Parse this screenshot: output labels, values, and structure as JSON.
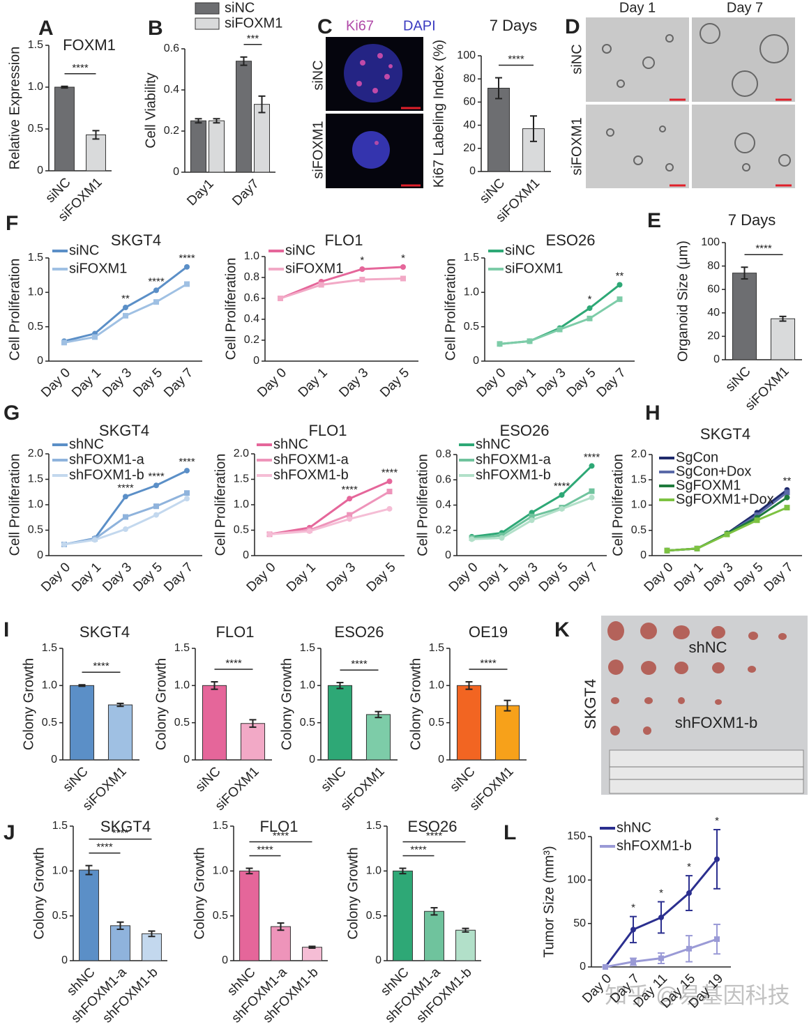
{
  "chart_data": [
    {
      "type": "bar",
      "panel": "A",
      "title": "FOXM1",
      "ylabel": "Relative Expression",
      "categories": [
        "siNC",
        "siFOXM1"
      ],
      "values": [
        1.0,
        0.43
      ],
      "errors": [
        0.01,
        0.05
      ],
      "colors": [
        "#6d6e71",
        "#d9dadb"
      ],
      "ylim": [
        0,
        1.5
      ],
      "yticks": [
        0,
        0.5,
        {
          "value": 1,
          "label": "1.0"
        },
        1.5
      ],
      "annotations": [
        "****"
      ]
    },
    {
      "type": "bar",
      "panel": "B",
      "ylabel": "Cell Viability",
      "categories": [
        "Day1",
        "Day7"
      ],
      "series": [
        {
          "name": "siNC",
          "color": "#6d6e71",
          "values": [
            0.25,
            0.54
          ],
          "errors": [
            0.01,
            0.02
          ]
        },
        {
          "name": "siFOXM1",
          "color": "#d9dadb",
          "values": [
            0.25,
            0.33
          ],
          "errors": [
            0.01,
            0.04
          ]
        }
      ],
      "ylim": [
        0,
        0.6
      ],
      "yticks": [
        0,
        0.2,
        0.4,
        0.6
      ],
      "annotations": [
        "***"
      ]
    },
    {
      "type": "bar",
      "title": "7 Days",
      "ylabel": "Ki67 Labeling Index (%)",
      "categories": [
        "siNC",
        "siFOXM1"
      ],
      "values": [
        72,
        37
      ],
      "errors": [
        9,
        11
      ],
      "colors": [
        "#6d6e71",
        "#d9dadb"
      ],
      "ylim": [
        0,
        100
      ],
      "yticks": [
        0,
        20,
        40,
        60,
        80,
        100
      ],
      "annotations": [
        "****"
      ]
    },
    {
      "type": "line",
      "panel": "F",
      "title": "SKGT4",
      "ylabel": "Cell Proliferation",
      "categories": [
        "Day 0",
        "Day 1",
        "Day 3",
        "Day 5",
        "Day 7"
      ],
      "series": [
        {
          "name": "siNC",
          "color": "#5b8fc7",
          "values": [
            0.29,
            0.4,
            0.78,
            1.03,
            1.37
          ]
        },
        {
          "name": "siFOXM1",
          "color": "#9fc0e3",
          "values": [
            0.27,
            0.35,
            0.66,
            0.86,
            1.12
          ]
        }
      ],
      "ylim": [
        0,
        1.5
      ],
      "yticks": [
        0,
        0.5,
        {
          "value": 1,
          "label": "1.0"
        },
        1.5
      ],
      "annotations": [
        null,
        null,
        "**",
        "****",
        "****"
      ]
    },
    {
      "type": "line",
      "title": "FLO1",
      "ylabel": "Cell Proliferation",
      "categories": [
        "Day 0",
        "Day 1",
        "Day 3",
        "Day 5"
      ],
      "series": [
        {
          "name": "siNC",
          "color": "#e5669a",
          "values": [
            0.6,
            0.76,
            0.88,
            0.9
          ]
        },
        {
          "name": "siFOXM1",
          "color": "#f2a9c6",
          "values": [
            0.6,
            0.73,
            0.78,
            0.79
          ]
        }
      ],
      "ylim": [
        0,
        1.0
      ],
      "yticks": [
        0,
        0.2,
        0.4,
        0.6,
        0.8,
        {
          "value": 1,
          "label": "1.0"
        }
      ],
      "annotations": [
        null,
        null,
        "*",
        "*"
      ]
    },
    {
      "type": "line",
      "title": "ESO26",
      "ylabel": "Cell Proliferation",
      "categories": [
        "Day 0",
        "Day 1",
        "Day 3",
        "Day 5",
        "Day 7"
      ],
      "series": [
        {
          "name": "siNC",
          "color": "#2ea876",
          "values": [
            0.25,
            0.29,
            0.48,
            0.77,
            1.11
          ]
        },
        {
          "name": "siFOXM1",
          "color": "#7dcca8",
          "values": [
            0.25,
            0.29,
            0.46,
            0.62,
            0.9
          ]
        }
      ],
      "ylim": [
        0,
        1.5
      ],
      "yticks": [
        0,
        0.5,
        {
          "value": 1,
          "label": "1.0"
        },
        1.5
      ],
      "annotations": [
        null,
        null,
        null,
        "*",
        "**"
      ]
    },
    {
      "type": "bar",
      "panel": "E",
      "title": "7 Days",
      "ylabel": "Organoid Size (μm)",
      "categories": [
        "siNC",
        "siFOXM1"
      ],
      "values": [
        74,
        35
      ],
      "errors": [
        5,
        2
      ],
      "colors": [
        "#6d6e71",
        "#d9dadb"
      ],
      "ylim": [
        0,
        100
      ],
      "yticks": [
        0,
        20,
        40,
        60,
        80,
        100
      ],
      "annotations": [
        "****"
      ]
    },
    {
      "type": "line",
      "panel": "G",
      "title": "SKGT4",
      "ylabel": "Cell Proliferation",
      "categories": [
        "Day 0",
        "Day 1",
        "Day 3",
        "Day 5",
        "Day 7"
      ],
      "series": [
        {
          "name": "shNC",
          "color": "#5b8fc7",
          "values": [
            0.22,
            0.34,
            1.16,
            1.38,
            1.67
          ]
        },
        {
          "name": "shFOXM1-a",
          "color": "#8fb3dc",
          "values": [
            0.22,
            0.33,
            0.76,
            0.97,
            1.23
          ]
        },
        {
          "name": "shFOXM1-b",
          "color": "#c3d8ee",
          "values": [
            0.22,
            0.31,
            0.52,
            0.8,
            1.12
          ]
        }
      ],
      "ylim": [
        0,
        2.0
      ],
      "yticks": [
        0,
        0.5,
        {
          "value": 1,
          "label": "1.0"
        },
        1.5,
        {
          "value": 2,
          "label": "2.0"
        }
      ],
      "annotations": [
        null,
        null,
        "****",
        "****",
        "****"
      ]
    },
    {
      "type": "line",
      "title": "FLO1",
      "ylabel": "Cell Proliferation",
      "categories": [
        "Day 0",
        "Day 1",
        "Day 3",
        "Day 5"
      ],
      "series": [
        {
          "name": "shNC",
          "color": "#e5669a",
          "values": [
            0.42,
            0.55,
            1.12,
            1.46
          ]
        },
        {
          "name": "shFOXM1-a",
          "color": "#ee94ba",
          "values": [
            0.42,
            0.5,
            0.8,
            1.26
          ]
        },
        {
          "name": "shFOXM1-b",
          "color": "#f5bdd5",
          "values": [
            0.42,
            0.48,
            0.72,
            0.92
          ]
        }
      ],
      "ylim": [
        0,
        2.0
      ],
      "yticks": [
        0,
        0.5,
        {
          "value": 1,
          "label": "1.0"
        },
        1.5,
        {
          "value": 2,
          "label": "2.0"
        }
      ],
      "annotations": [
        null,
        null,
        "****",
        "****"
      ]
    },
    {
      "type": "line",
      "title": "ESO26",
      "ylabel": "Cell Proliferation",
      "categories": [
        "Day 0",
        "Day 1",
        "Day 3",
        "Day 5",
        "Day 7"
      ],
      "series": [
        {
          "name": "shNC",
          "color": "#2ea876",
          "values": [
            0.15,
            0.18,
            0.34,
            0.48,
            0.71
          ]
        },
        {
          "name": "shFOXM1-a",
          "color": "#6fc39d",
          "values": [
            0.14,
            0.16,
            0.31,
            0.38,
            0.51
          ]
        },
        {
          "name": "shFOXM1-b",
          "color": "#b2e0c9",
          "values": [
            0.13,
            0.14,
            0.28,
            0.37,
            0.46
          ]
        }
      ],
      "ylim": [
        0,
        0.8
      ],
      "yticks": [
        0,
        0.2,
        0.4,
        0.6,
        0.8
      ],
      "annotations": [
        null,
        null,
        null,
        "****",
        "****"
      ]
    },
    {
      "type": "line",
      "panel": "H",
      "title": "SKGT4",
      "ylabel": "Cell Proliferation",
      "categories": [
        "Day 0",
        "Day 1",
        "Day 3",
        "Day 5",
        "Day 7"
      ],
      "series": [
        {
          "name": "SgCon",
          "color": "#1f2a6b",
          "values": [
            0.1,
            0.14,
            0.44,
            0.85,
            1.3
          ]
        },
        {
          "name": "SgCon+Dox",
          "color": "#5a6aa8",
          "values": [
            0.1,
            0.14,
            0.43,
            0.8,
            1.25
          ]
        },
        {
          "name": "SgFOXM1",
          "color": "#1e7a3c",
          "values": [
            0.1,
            0.14,
            0.44,
            0.75,
            1.15
          ]
        },
        {
          "name": "SgFOXM1+Dox",
          "color": "#7dc242",
          "values": [
            0.1,
            0.14,
            0.42,
            0.7,
            0.95
          ]
        }
      ],
      "ylim": [
        0,
        2.0
      ],
      "yticks": [
        0,
        0.5,
        {
          "value": 1,
          "label": "1.0"
        },
        1.5,
        {
          "value": 2,
          "label": "2.0"
        }
      ],
      "annotations": [
        null,
        null,
        null,
        null,
        "**"
      ]
    },
    {
      "type": "bar",
      "panel": "I",
      "title": "SKGT4",
      "ylabel": "Colony Growth",
      "categories": [
        "siNC",
        "siFOXM1"
      ],
      "values": [
        1.0,
        0.74
      ],
      "errors": [
        0.01,
        0.02
      ],
      "colors": [
        "#5b8fc7",
        "#9fc0e3"
      ],
      "ylim": [
        0,
        1.5
      ],
      "yticks": [
        0,
        0.5,
        {
          "value": 1,
          "label": "1.0"
        },
        1.5
      ],
      "annotations": [
        "****"
      ]
    },
    {
      "type": "bar",
      "title": "FLO1",
      "ylabel": "Colony Growth",
      "categories": [
        "siNC",
        "siFOXM1"
      ],
      "values": [
        1.0,
        0.49
      ],
      "errors": [
        0.05,
        0.05
      ],
      "colors": [
        "#e5669a",
        "#f2a9c6"
      ],
      "ylim": [
        0,
        1.5
      ],
      "yticks": [
        0,
        0.5,
        {
          "value": 1,
          "label": "1.0"
        },
        1.5
      ],
      "annotations": [
        "****"
      ]
    },
    {
      "type": "bar",
      "title": "ESO26",
      "ylabel": "Colony Growth",
      "categories": [
        "siNC",
        "siFOXM1"
      ],
      "values": [
        1.0,
        0.61
      ],
      "errors": [
        0.04,
        0.04
      ],
      "colors": [
        "#2ea876",
        "#7dcca8"
      ],
      "ylim": [
        0,
        1.5
      ],
      "yticks": [
        0,
        0.5,
        {
          "value": 1,
          "label": "1.0"
        },
        1.5
      ],
      "annotations": [
        "****"
      ]
    },
    {
      "type": "bar",
      "title": "OE19",
      "ylabel": "Colony Growth",
      "categories": [
        "siNC",
        "siFOXM1"
      ],
      "values": [
        1.0,
        0.73
      ],
      "errors": [
        0.05,
        0.07
      ],
      "colors": [
        "#f26522",
        "#f7a11a"
      ],
      "ylim": [
        0,
        1.5
      ],
      "yticks": [
        0,
        0.5,
        {
          "value": 1,
          "label": "1.0"
        },
        1.5
      ],
      "annotations": [
        "****"
      ]
    },
    {
      "type": "bar",
      "panel": "J",
      "title": "SKGT4",
      "ylabel": "Colony Growth",
      "categories": [
        "shNC",
        "shFOXM1-a",
        "shFOXM1-b"
      ],
      "values": [
        1.01,
        0.39,
        0.3
      ],
      "errors": [
        0.05,
        0.04,
        0.03
      ],
      "colors": [
        "#5b8fc7",
        "#8fb3dc",
        "#c3d8ee"
      ],
      "ylim": [
        0,
        1.5
      ],
      "yticks": [
        0,
        0.5,
        {
          "value": 1,
          "label": "1.0"
        },
        1.5
      ],
      "annotations": [
        "****",
        "****"
      ]
    },
    {
      "type": "bar",
      "title": "FLO1",
      "ylabel": "Colony Growth",
      "categories": [
        "shNC",
        "shFOXM1-a",
        "shFOXM1-b"
      ],
      "values": [
        1.0,
        0.38,
        0.15
      ],
      "errors": [
        0.03,
        0.04,
        0.01
      ],
      "colors": [
        "#e5669a",
        "#ee94ba",
        "#f5bdd5"
      ],
      "ylim": [
        0,
        1.5
      ],
      "yticks": [
        0,
        0.5,
        {
          "value": 1,
          "label": "1.0"
        },
        1.5
      ],
      "annotations": [
        "****",
        "****"
      ]
    },
    {
      "type": "bar",
      "title": "ESO26",
      "ylabel": "Colony Growth",
      "categories": [
        "shNC",
        "shFOXM1-a",
        "shFOXM1-b"
      ],
      "values": [
        1.0,
        0.55,
        0.34
      ],
      "errors": [
        0.03,
        0.04,
        0.02
      ],
      "colors": [
        "#2ea876",
        "#6fc39d",
        "#b2e0c9"
      ],
      "ylim": [
        0,
        1.5
      ],
      "yticks": [
        0,
        0.5,
        {
          "value": 1,
          "label": "1.0"
        },
        1.5
      ],
      "annotations": [
        "****",
        "****"
      ]
    },
    {
      "type": "line",
      "panel": "L",
      "ylabel": "Tumor Size (mm³)",
      "categories": [
        "Day 0",
        "Day 7",
        "Day 11",
        "Day 15",
        "Day 19"
      ],
      "series": [
        {
          "name": "shNC",
          "color": "#2b2f8f",
          "values": [
            0,
            43,
            57,
            85,
            124
          ],
          "errors": [
            0,
            15,
            18,
            20,
            34
          ]
        },
        {
          "name": "shFOXM1-b",
          "color": "#9a9ad6",
          "values": [
            0,
            6,
            10,
            21,
            32
          ],
          "errors": [
            0,
            4,
            6,
            15,
            17
          ]
        }
      ],
      "ylim": [
        0,
        150
      ],
      "yticks": [
        0,
        50,
        100,
        150
      ],
      "annotations": [
        null,
        "*",
        "*",
        "*",
        "*"
      ]
    }
  ],
  "images": [
    {
      "panel": "C",
      "stains": [
        "Ki67",
        "DAPI"
      ],
      "rows": [
        "siNC",
        "siFOXM1"
      ]
    },
    {
      "panel": "D",
      "columns": [
        "Day 1",
        "Day 7"
      ],
      "rows": [
        "siNC",
        "siFOXM1"
      ]
    },
    {
      "panel": "K",
      "side": "SKGT4",
      "groups": [
        "shNC",
        "shFOXM1-b"
      ]
    }
  ],
  "watermark": "知乎 @易基因科技"
}
